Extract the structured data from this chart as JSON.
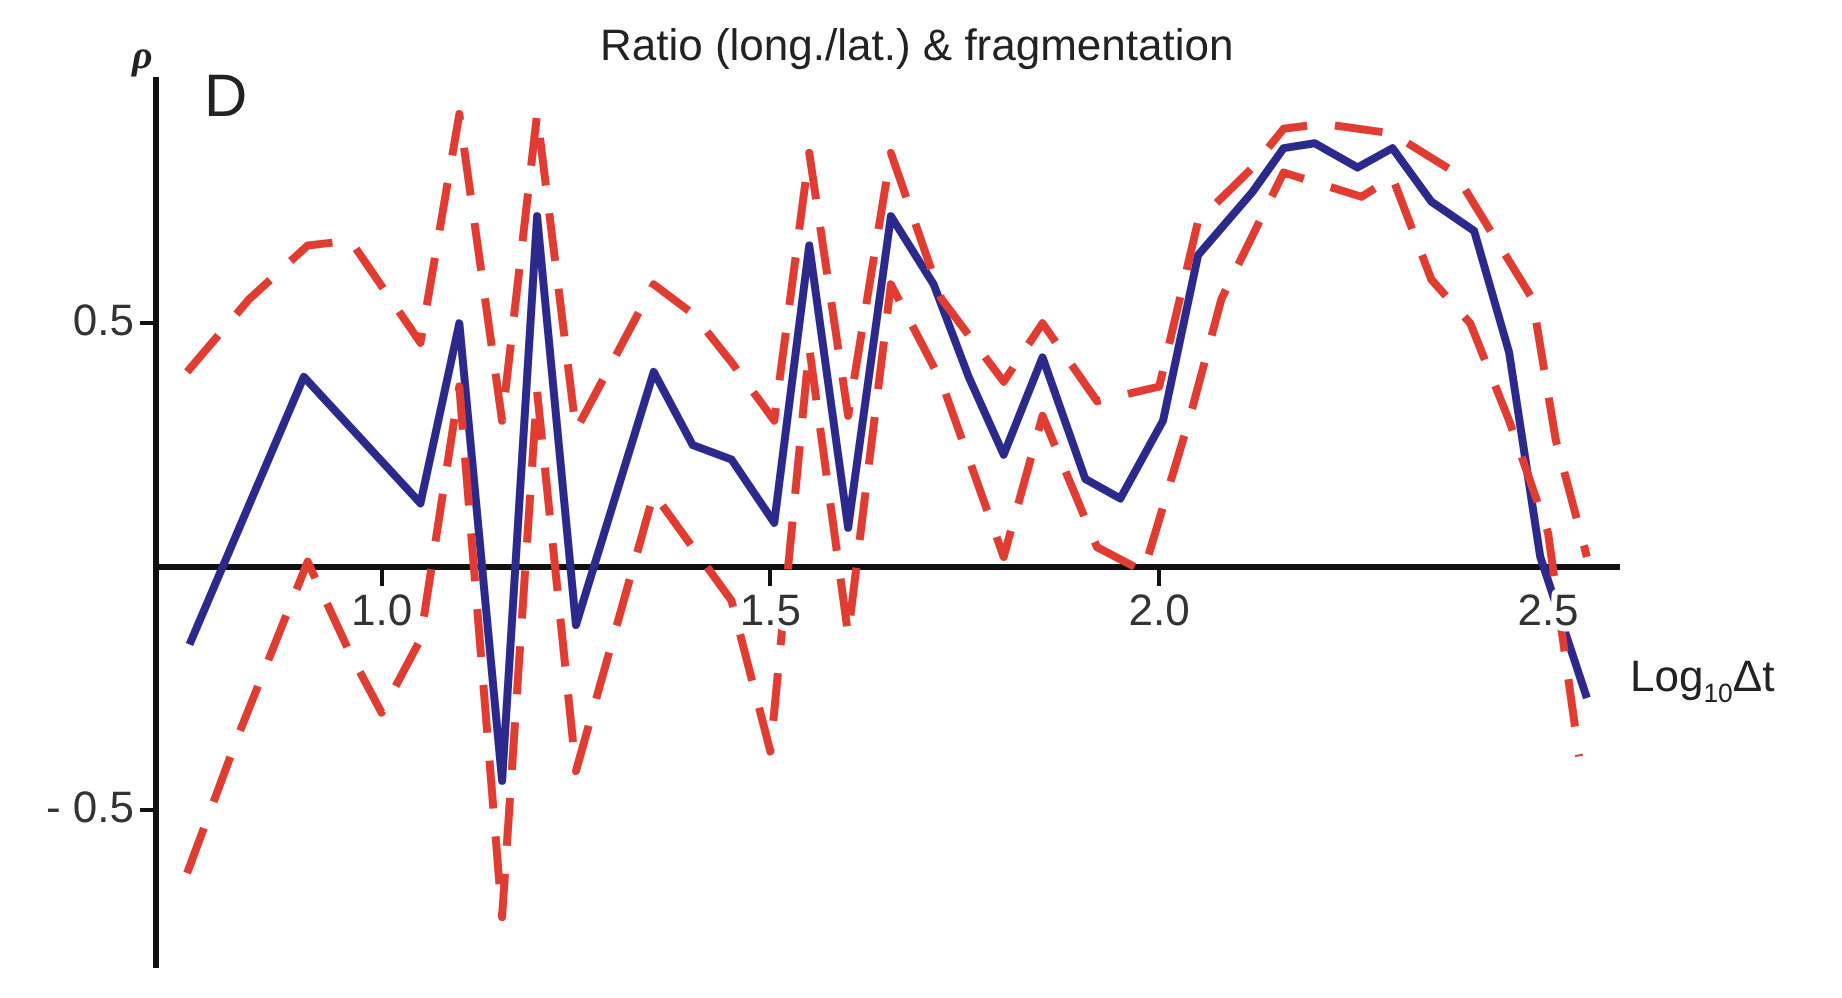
{
  "chart_data": {
    "type": "line",
    "title": "Ratio (long./lat.) & fragmentation",
    "xlabel": "Log$_{10}$Δt",
    "ylabel": "ρ",
    "annotations": [
      "D"
    ],
    "xlim": [
      0.71,
      2.59
    ],
    "ylim": [
      -0.82,
      1.0
    ],
    "xticks": [
      {
        "value": 1,
        "label": "1.0"
      },
      {
        "value": 1.5,
        "label": "1.5"
      },
      {
        "value": 2,
        "label": "2.0"
      },
      {
        "value": 2.5,
        "label": "2.5"
      }
    ],
    "yticks": [
      {
        "value": -0.5,
        "label": "- 0.5"
      },
      {
        "value": 0.5,
        "label": "0.5"
      }
    ],
    "grid": false,
    "marker": "none",
    "series": [
      {
        "color": "#e03c31",
        "line_style": "dashed",
        "x": [
          0.75,
          0.83,
          0.905,
          0.96,
          1.05,
          1.1,
          1.155,
          1.2,
          1.25,
          1.35,
          1.4,
          1.45,
          1.505,
          1.55,
          1.6,
          1.655,
          1.72,
          1.8,
          1.85,
          1.92,
          2.0,
          2.05,
          2.12,
          2.16,
          2.21,
          2.3,
          2.38,
          2.43,
          2.48,
          2.51,
          2.55
        ],
        "values": [
          0.4,
          0.55,
          0.66,
          0.67,
          0.46,
          0.93,
          0.3,
          0.93,
          0.28,
          0.58,
          0.52,
          0.42,
          0.3,
          0.85,
          0.31,
          0.85,
          0.55,
          0.38,
          0.5,
          0.34,
          0.37,
          0.71,
          0.82,
          0.9,
          0.91,
          0.89,
          0.81,
          0.68,
          0.55,
          0.26,
          0.02
        ]
      },
      {
        "color": "#e03c31",
        "line_style": "dashed",
        "x": [
          0.75,
          0.815,
          0.905,
          0.96,
          1.0,
          1.05,
          1.1,
          1.155,
          1.2,
          1.25,
          1.35,
          1.45,
          1.5,
          1.55,
          1.6,
          1.655,
          1.72,
          1.8,
          1.85,
          1.92,
          1.98,
          2.04,
          2.08,
          2.16,
          2.26,
          2.3,
          2.35,
          2.4,
          2.45,
          2.5,
          2.54
        ],
        "values": [
          -0.63,
          -0.35,
          0.01,
          -0.18,
          -0.3,
          -0.15,
          0.37,
          -0.72,
          0.36,
          -0.42,
          0.15,
          -0.07,
          -0.38,
          0.45,
          -0.14,
          0.58,
          0.38,
          0.02,
          0.31,
          0.04,
          -0.01,
          0.31,
          0.55,
          0.81,
          0.76,
          0.8,
          0.59,
          0.5,
          0.3,
          0.07,
          -0.39
        ]
      },
      {
        "color": "#2b2a8c",
        "line_style": "solid",
        "x": [
          0.753,
          0.9,
          1.05,
          1.1,
          1.155,
          1.2,
          1.25,
          1.35,
          1.4,
          1.45,
          1.505,
          1.55,
          1.6,
          1.655,
          1.71,
          1.755,
          1.8,
          1.85,
          1.905,
          1.95,
          2.005,
          2.05,
          2.12,
          2.16,
          2.2,
          2.255,
          2.3,
          2.35,
          2.405,
          2.45,
          2.49,
          2.55
        ],
        "values": [
          -0.16,
          0.39,
          0.13,
          0.5,
          -0.44,
          0.72,
          -0.12,
          0.4,
          0.25,
          0.22,
          0.09,
          0.66,
          0.08,
          0.72,
          0.58,
          0.39,
          0.23,
          0.43,
          0.18,
          0.14,
          0.3,
          0.64,
          0.77,
          0.86,
          0.87,
          0.82,
          0.86,
          0.75,
          0.69,
          0.44,
          0.02,
          -0.27
        ]
      }
    ]
  }
}
